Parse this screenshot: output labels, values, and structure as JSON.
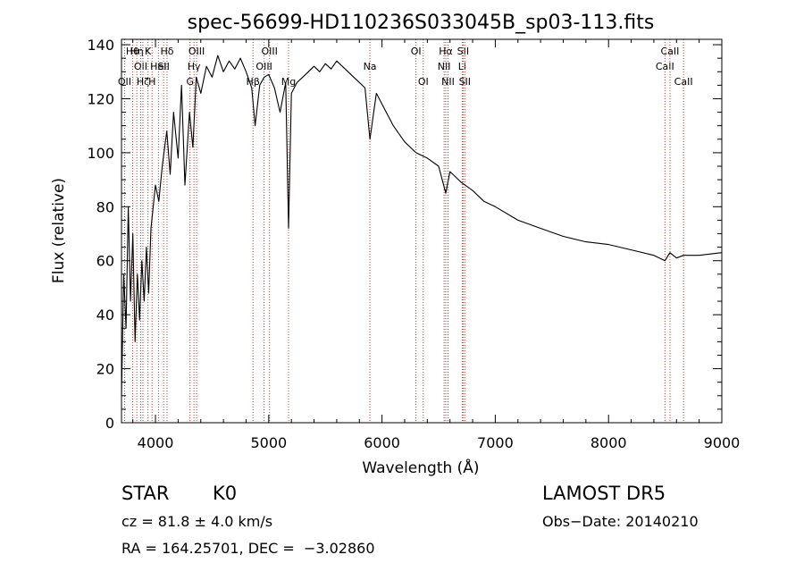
{
  "chart_data": {
    "type": "line",
    "title": "spec-56699-HD110236S033045B_sp03-113.fits",
    "xlabel": "Wavelength (Å)",
    "ylabel": "Flux (relative)",
    "xlim": [
      3700,
      9000
    ],
    "ylim": [
      0,
      142
    ],
    "xticks": [
      4000,
      5000,
      6000,
      7000,
      8000,
      9000
    ],
    "yticks": [
      0,
      20,
      40,
      60,
      80,
      100,
      120,
      140
    ],
    "grid": false,
    "series": [
      {
        "x": [
          3700,
          3720,
          3740,
          3760,
          3780,
          3800,
          3820,
          3840,
          3860,
          3880,
          3900,
          3920,
          3940,
          3960,
          3980,
          4000,
          4030,
          4060,
          4100,
          4130,
          4160,
          4200,
          4230,
          4260,
          4300,
          4330,
          4360,
          4400,
          4450,
          4500,
          4550,
          4600,
          4650,
          4700,
          4750,
          4800,
          4850,
          4880,
          4920,
          4960,
          5000,
          5050,
          5100,
          5150,
          5175,
          5200,
          5250,
          5300,
          5350,
          5400,
          5450,
          5500,
          5550,
          5600,
          5650,
          5700,
          5750,
          5800,
          5850,
          5893,
          5950,
          6000,
          6100,
          6200,
          6300,
          6400,
          6500,
          6563,
          6600,
          6700,
          6800,
          6900,
          7000,
          7200,
          7400,
          7600,
          7800,
          8000,
          8200,
          8400,
          8498,
          8542,
          8600,
          8662,
          8800,
          9000
        ],
        "y": [
          10,
          55,
          35,
          80,
          45,
          70,
          30,
          55,
          38,
          60,
          45,
          65,
          48,
          72,
          80,
          88,
          82,
          95,
          108,
          92,
          115,
          98,
          125,
          88,
          115,
          102,
          128,
          122,
          132,
          128,
          136,
          130,
          134,
          131,
          135,
          130,
          124,
          110,
          125,
          128,
          129,
          124,
          115,
          126,
          72,
          122,
          126,
          128,
          130,
          132,
          130,
          133,
          131,
          134,
          132,
          130,
          128,
          126,
          124,
          105,
          122,
          118,
          110,
          104,
          100,
          98,
          95,
          85,
          93,
          89,
          86,
          82,
          80,
          75,
          72,
          69,
          67,
          66,
          64,
          62,
          60,
          63,
          61,
          62,
          62,
          63
        ]
      }
    ],
    "lines": [
      {
        "x": 3727,
        "label": "OII",
        "row": 3
      },
      {
        "x": 3798,
        "label": "Hθ",
        "row": 1
      },
      {
        "x": 3835,
        "label": "Hη",
        "row": 1
      },
      {
        "x": 3869,
        "label": "OII",
        "row": 2
      },
      {
        "x": 3889,
        "label": "Hζ",
        "row": 3
      },
      {
        "x": 3934,
        "label": "K",
        "row": 1
      },
      {
        "x": 3970,
        "label": "H",
        "row": 3
      },
      {
        "x": 4026,
        "label": "HeI",
        "row": 2
      },
      {
        "x": 4072,
        "label": "SII",
        "row": 2
      },
      {
        "x": 4102,
        "label": "Hδ",
        "row": 1
      },
      {
        "x": 4305,
        "label": "G",
        "row": 3
      },
      {
        "x": 4340,
        "label": "Hγ",
        "row": 2
      },
      {
        "x": 4363,
        "label": "OIII",
        "row": 1
      },
      {
        "x": 4861,
        "label": "Hβ",
        "row": 3
      },
      {
        "x": 4959,
        "label": "OIII",
        "row": 2
      },
      {
        "x": 5007,
        "label": "OIII",
        "row": 1
      },
      {
        "x": 5175,
        "label": "Mg",
        "row": 3
      },
      {
        "x": 5893,
        "label": "Na",
        "row": 2
      },
      {
        "x": 6300,
        "label": "OI",
        "row": 1
      },
      {
        "x": 6364,
        "label": "OI",
        "row": 3
      },
      {
        "x": 6548,
        "label": "NII",
        "row": 2
      },
      {
        "x": 6563,
        "label": "Hα",
        "row": 1
      },
      {
        "x": 6583,
        "label": "NII",
        "row": 3
      },
      {
        "x": 6708,
        "label": "Li",
        "row": 2
      },
      {
        "x": 6716,
        "label": "SII",
        "row": 1
      },
      {
        "x": 6731,
        "label": "SII",
        "row": 3
      },
      {
        "x": 8498,
        "label": "CaII",
        "row": 2
      },
      {
        "x": 8542,
        "label": "CaII",
        "row": 1
      },
      {
        "x": 8662,
        "label": "CaII",
        "row": 3
      }
    ]
  },
  "info": {
    "object_class": "STAR",
    "subclass": "K0",
    "survey": "LAMOST DR5",
    "cz": "cz = 81.8 ± 4.0 km/s",
    "obs_date": "Obs−Date: 20140210",
    "coords": "RA = 164.25701, DEC =  −3.02860"
  }
}
